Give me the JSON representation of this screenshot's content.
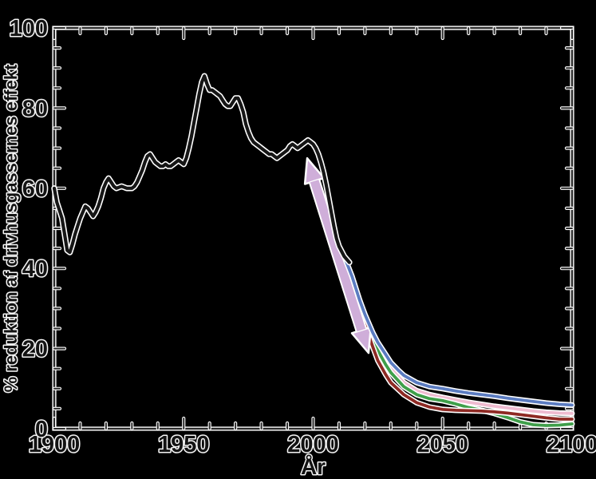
{
  "page": {
    "background_color": "#000000",
    "text_fill_color": "#131313",
    "text_halo_color": "#f5f5f5",
    "axis_core_color": "#2b2b2b",
    "axis_halo_color": "#ffffff"
  },
  "chart_data": {
    "type": "line",
    "title": "",
    "xlabel": "År",
    "ylabel": "% reduktion af drivhusgassernes effekt",
    "xlim": [
      1900,
      2100
    ],
    "ylim": [
      0,
      100
    ],
    "x_major_ticks": [
      1900,
      1950,
      2000,
      2050,
      2100
    ],
    "x_tick_labels": [
      "1900",
      "1950",
      "2000",
      "2050",
      "2100"
    ],
    "x_minor_step": 10,
    "y_major_ticks": [
      0,
      20,
      40,
      60,
      80,
      100
    ],
    "y_tick_labels": [
      "0",
      "20",
      "40",
      "60",
      "80",
      "100"
    ],
    "y_minor_step": 5,
    "grid": false,
    "legend": false,
    "frame_box": true,
    "series": [
      {
        "name": "scenario-pink-line",
        "color": "#eebbd0",
        "width": 3.8,
        "points": [
          [
            2013,
            41
          ],
          [
            2016,
            35
          ],
          [
            2019,
            29
          ],
          [
            2022,
            24.5
          ],
          [
            2025,
            20.5
          ],
          [
            2028,
            17
          ],
          [
            2030,
            15
          ],
          [
            2035,
            11.5
          ],
          [
            2040,
            9.5
          ],
          [
            2045,
            8.5
          ],
          [
            2050,
            7.8
          ],
          [
            2055,
            7.2
          ],
          [
            2060,
            6.6
          ],
          [
            2065,
            6.1
          ],
          [
            2070,
            5.6
          ],
          [
            2075,
            5.2
          ],
          [
            2080,
            4.8
          ],
          [
            2085,
            4.4
          ],
          [
            2090,
            4.1
          ],
          [
            2095,
            3.9
          ],
          [
            2100,
            3.8
          ]
        ]
      },
      {
        "name": "scenario-green-line",
        "color": "#3f9f4a",
        "width": 3.8,
        "points": [
          [
            2013,
            40.5
          ],
          [
            2016,
            34.5
          ],
          [
            2019,
            28.5
          ],
          [
            2022,
            23.5
          ],
          [
            2025,
            19.5
          ],
          [
            2028,
            16
          ],
          [
            2030,
            14
          ],
          [
            2035,
            10.5
          ],
          [
            2040,
            8.5
          ],
          [
            2045,
            7.5
          ],
          [
            2050,
            7
          ],
          [
            2055,
            6.2
          ],
          [
            2060,
            5.3
          ],
          [
            2065,
            4.6
          ],
          [
            2070,
            3.8
          ],
          [
            2075,
            2.8
          ],
          [
            2080,
            1.7
          ],
          [
            2085,
            1.0
          ],
          [
            2090,
            0.8
          ],
          [
            2095,
            0.9
          ],
          [
            2100,
            1.2
          ]
        ]
      },
      {
        "name": "scenario-darkred-line",
        "color": "#8e2a24",
        "width": 3.8,
        "points": [
          [
            2012,
            42.5
          ],
          [
            2015,
            37.5
          ],
          [
            2018,
            30.5
          ],
          [
            2020,
            26
          ],
          [
            2023,
            20.5
          ],
          [
            2025,
            17
          ],
          [
            2028,
            13.5
          ],
          [
            2030,
            11.5
          ],
          [
            2035,
            8.5
          ],
          [
            2040,
            6.5
          ],
          [
            2045,
            5.4
          ],
          [
            2050,
            4.8
          ],
          [
            2055,
            4.6
          ],
          [
            2060,
            4.5
          ],
          [
            2065,
            4.4
          ],
          [
            2070,
            4.2
          ],
          [
            2075,
            3.9
          ],
          [
            2080,
            3.5
          ],
          [
            2085,
            3.1
          ],
          [
            2090,
            2.7
          ],
          [
            2095,
            2.4
          ],
          [
            2100,
            2.4
          ]
        ]
      },
      {
        "name": "trend-arrow",
        "type": "double-arrow",
        "color": "#cfaed9",
        "from": [
          2021.4,
          18.9
        ],
        "to": [
          1997.7,
          67.5
        ]
      },
      {
        "name": "scenario-blue-line",
        "color": "#5b7cc1",
        "width": 3.8,
        "points": [
          [
            2012,
            43
          ],
          [
            2015,
            38
          ],
          [
            2018,
            32
          ],
          [
            2020,
            28.5
          ],
          [
            2023,
            24
          ],
          [
            2025,
            21.5
          ],
          [
            2028,
            18.5
          ],
          [
            2030,
            16.5
          ],
          [
            2033,
            14.5
          ],
          [
            2035,
            13.3
          ],
          [
            2040,
            11.5
          ],
          [
            2045,
            10.5
          ],
          [
            2050,
            10
          ],
          [
            2055,
            9.4
          ],
          [
            2060,
            8.9
          ],
          [
            2065,
            8.5
          ],
          [
            2070,
            8.1
          ],
          [
            2075,
            7.6
          ],
          [
            2080,
            7.2
          ],
          [
            2085,
            6.8
          ],
          [
            2090,
            6.4
          ],
          [
            2095,
            6.1
          ],
          [
            2100,
            5.9
          ]
        ]
      },
      {
        "name": "historical-black-line",
        "color": "#161616",
        "width": 4.2,
        "points": [
          [
            1900,
            60
          ],
          [
            1901,
            56.5
          ],
          [
            1902,
            54.5
          ],
          [
            1903,
            52.5
          ],
          [
            1904,
            48.5
          ],
          [
            1905,
            44.5
          ],
          [
            1906,
            44
          ],
          [
            1907,
            46
          ],
          [
            1908,
            48.5
          ],
          [
            1909,
            50.5
          ],
          [
            1910,
            52.5
          ],
          [
            1911,
            54
          ],
          [
            1912,
            55.5
          ],
          [
            1913,
            55
          ],
          [
            1914,
            54
          ],
          [
            1915,
            53
          ],
          [
            1916,
            54
          ],
          [
            1917,
            55.5
          ],
          [
            1918,
            57.5
          ],
          [
            1919,
            60
          ],
          [
            1920,
            61.5
          ],
          [
            1921,
            62.5
          ],
          [
            1922,
            61.5
          ],
          [
            1923,
            60.5
          ],
          [
            1924,
            60
          ],
          [
            1926,
            60.5
          ],
          [
            1928,
            60
          ],
          [
            1930,
            60
          ],
          [
            1931,
            60.5
          ],
          [
            1932,
            61.5
          ],
          [
            1933,
            63
          ],
          [
            1934,
            64.5
          ],
          [
            1935,
            66.5
          ],
          [
            1936,
            68
          ],
          [
            1937,
            68.5
          ],
          [
            1938,
            67.5
          ],
          [
            1939,
            66.5
          ],
          [
            1940,
            66
          ],
          [
            1941,
            65.5
          ],
          [
            1942,
            65.5
          ],
          [
            1943,
            66
          ],
          [
            1944,
            65.5
          ],
          [
            1945,
            65.5
          ],
          [
            1946,
            66
          ],
          [
            1947,
            66.5
          ],
          [
            1948,
            67
          ],
          [
            1949,
            66.5
          ],
          [
            1950,
            66
          ],
          [
            1951,
            67.5
          ],
          [
            1952,
            70
          ],
          [
            1953,
            73
          ],
          [
            1954,
            76.5
          ],
          [
            1955,
            80
          ],
          [
            1956,
            83.5
          ],
          [
            1957,
            86.5
          ],
          [
            1958,
            88
          ],
          [
            1959,
            86
          ],
          [
            1960,
            84.5
          ],
          [
            1961,
            84.5
          ],
          [
            1962,
            84
          ],
          [
            1963,
            83.5
          ],
          [
            1964,
            83
          ],
          [
            1965,
            82
          ],
          [
            1966,
            81
          ],
          [
            1967,
            80.5
          ],
          [
            1968,
            80.5
          ],
          [
            1969,
            81.5
          ],
          [
            1970,
            82.5
          ],
          [
            1971,
            82.5
          ],
          [
            1972,
            81
          ],
          [
            1973,
            79
          ],
          [
            1974,
            76
          ],
          [
            1975,
            74
          ],
          [
            1976,
            72.5
          ],
          [
            1977,
            71.5
          ],
          [
            1978,
            71
          ],
          [
            1979,
            70.5
          ],
          [
            1980,
            70
          ],
          [
            1981,
            69.5
          ],
          [
            1982,
            69
          ],
          [
            1983,
            68.5
          ],
          [
            1984,
            68.5
          ],
          [
            1985,
            68
          ],
          [
            1986,
            67.5
          ],
          [
            1987,
            68
          ],
          [
            1988,
            68.5
          ],
          [
            1989,
            69
          ],
          [
            1990,
            69.5
          ],
          [
            1991,
            70.5
          ],
          [
            1992,
            71
          ],
          [
            1993,
            70.5
          ],
          [
            1994,
            70
          ],
          [
            1995,
            70.5
          ],
          [
            1996,
            71
          ],
          [
            1997,
            71.5
          ],
          [
            1998,
            72
          ],
          [
            1999,
            71.5
          ],
          [
            2000,
            71
          ],
          [
            2001,
            70
          ],
          [
            2002,
            68.5
          ],
          [
            2003,
            66.5
          ],
          [
            2004,
            64
          ],
          [
            2005,
            61
          ],
          [
            2006,
            57.5
          ],
          [
            2007,
            54
          ],
          [
            2008,
            50.5
          ],
          [
            2009,
            47.5
          ],
          [
            2010,
            45.5
          ],
          [
            2012,
            43
          ],
          [
            2014,
            41.5
          ]
        ]
      }
    ]
  }
}
